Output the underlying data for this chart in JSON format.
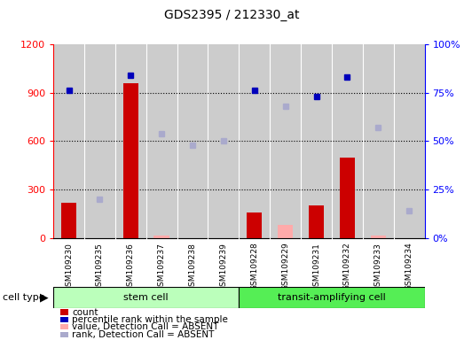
{
  "title": "GDS2395 / 212330_at",
  "samples": [
    "GSM109230",
    "GSM109235",
    "GSM109236",
    "GSM109237",
    "GSM109238",
    "GSM109239",
    "GSM109228",
    "GSM109229",
    "GSM109231",
    "GSM109232",
    "GSM109233",
    "GSM109234"
  ],
  "count_present": [
    220,
    0,
    960,
    0,
    0,
    0,
    160,
    0,
    200,
    500,
    0,
    0
  ],
  "count_absent": [
    0,
    0,
    0,
    15,
    0,
    0,
    0,
    80,
    0,
    0,
    15,
    0
  ],
  "percentile_present": [
    76,
    0,
    84,
    0,
    0,
    0,
    76,
    0,
    73,
    83,
    0,
    0
  ],
  "percentile_absent": [
    0,
    20,
    0,
    54,
    48,
    50,
    0,
    68,
    0,
    0,
    57,
    14
  ],
  "ylim_left": [
    0,
    1200
  ],
  "ylim_right": [
    0,
    100
  ],
  "yticks_left": [
    0,
    300,
    600,
    900,
    1200
  ],
  "yticks_right": [
    0,
    25,
    50,
    75,
    100
  ],
  "stem_color": "#bbffbb",
  "transit_color": "#55ee55",
  "bar_color_present": "#cc0000",
  "bar_color_absent": "#ffaaaa",
  "dot_color_present": "#0000bb",
  "dot_color_absent": "#aaaacc",
  "bg_color": "#cccccc",
  "legend_items": [
    "count",
    "percentile rank within the sample",
    "value, Detection Call = ABSENT",
    "rank, Detection Call = ABSENT"
  ],
  "legend_colors": [
    "#cc0000",
    "#0000bb",
    "#ffaaaa",
    "#aaaacc"
  ]
}
